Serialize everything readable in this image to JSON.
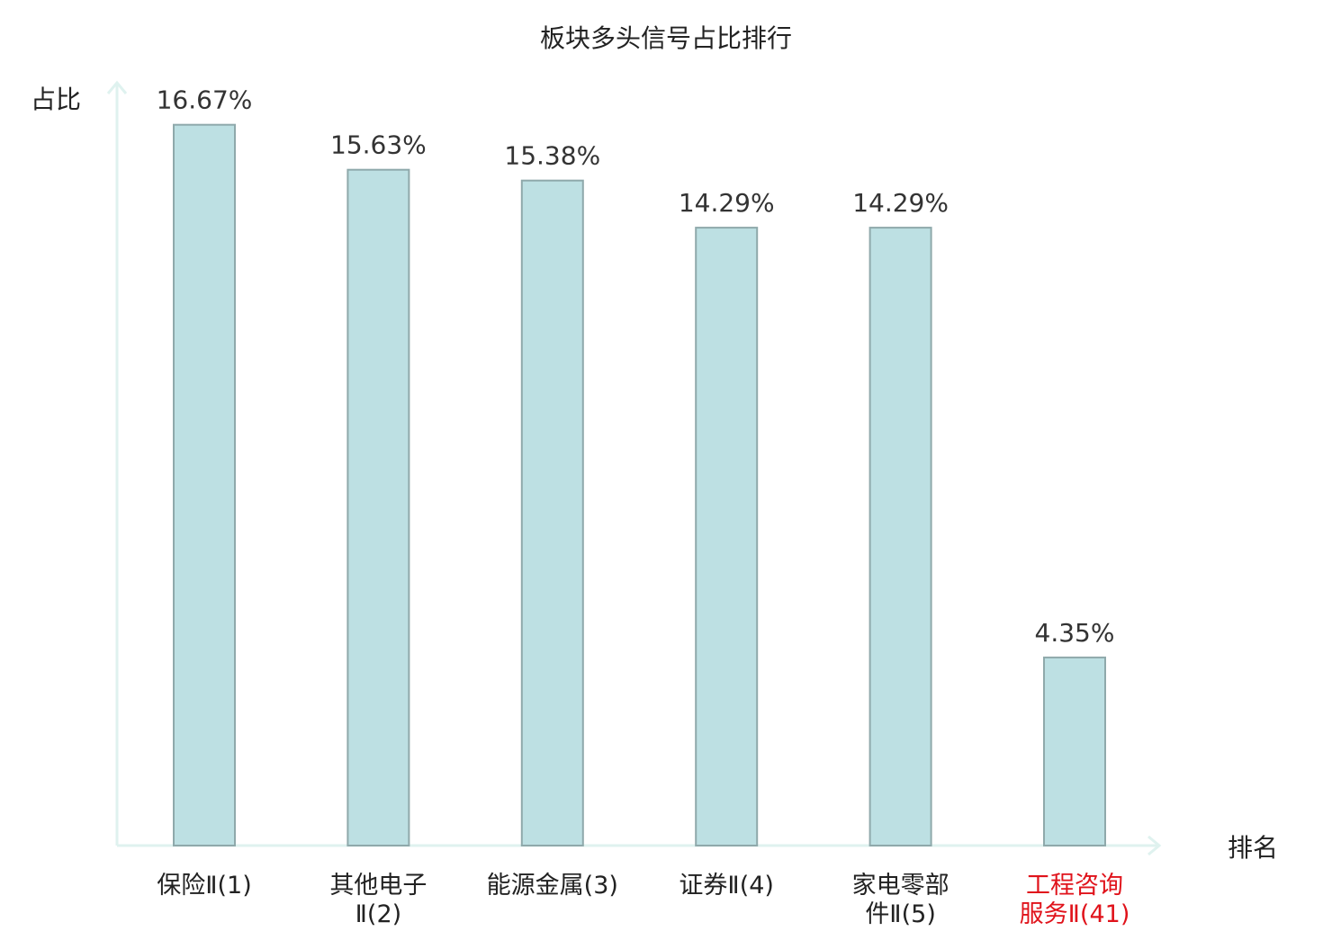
{
  "chart_data": {
    "type": "bar",
    "title": "板块多头信号占比排行",
    "ylabel": "占比",
    "xlabel": "排名",
    "ylim": [
      0,
      17.6
    ],
    "grid": false,
    "categories": [
      [
        "保险Ⅱ(1)"
      ],
      [
        "其他电子",
        "Ⅱ(2)"
      ],
      [
        "能源金属(3)"
      ],
      [
        "证券Ⅱ(4)"
      ],
      [
        "家电零部",
        "件Ⅱ(5)"
      ],
      [
        "工程咨询",
        "服务Ⅱ(41)"
      ]
    ],
    "values": [
      16.67,
      15.63,
      15.38,
      14.29,
      14.29,
      4.35
    ],
    "value_labels": [
      "16.67%",
      "15.63%",
      "15.38%",
      "14.29%",
      "14.29%",
      "4.35%"
    ],
    "highlight_index": 5
  },
  "colors": {
    "bar_fill": "#bde0e3",
    "bar_stroke": "#8fa9ab",
    "axis": "#dff2ef",
    "text": "#222222",
    "highlight": "#e0131b"
  }
}
